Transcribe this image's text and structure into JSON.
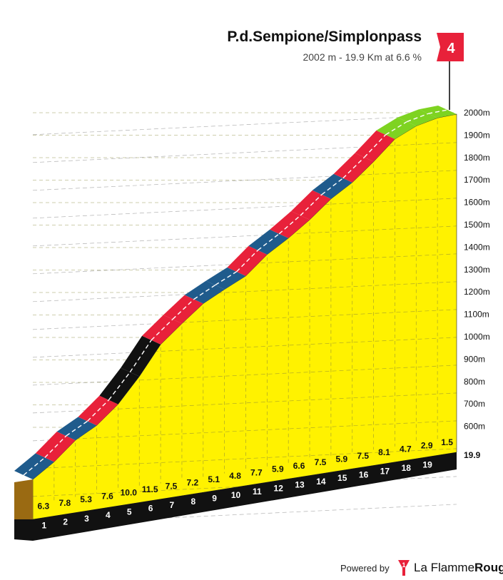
{
  "header": {
    "title": "P.d.Sempione/Simplonpass",
    "subtitle": "2002 m - 19.9 Km at 6.6 %"
  },
  "footer": {
    "powered_label": "Powered by",
    "brand_prefix": "La Flamme",
    "brand_suffix": "Rouge"
  },
  "chart_data": {
    "type": "area",
    "title": "P.d.Sempione/Simplonpass",
    "subtitle": "2002 m - 19.9 Km at 6.6 %",
    "category_flag": "4",
    "summit_altitude_m": 2002,
    "total_distance_km": 19.9,
    "average_gradient_pct": 6.6,
    "x_unit": "km",
    "y_unit": "m",
    "ylim": [
      500,
      2000
    ],
    "y_ticks": [
      "600m",
      "700m",
      "800m",
      "900m",
      "1000m",
      "1100m",
      "1200m",
      "1300m",
      "1400m",
      "1500m",
      "1600m",
      "1700m",
      "1800m",
      "1900m",
      "2000m"
    ],
    "y_tick_values": [
      600,
      700,
      800,
      900,
      1000,
      1100,
      1200,
      1300,
      1400,
      1500,
      1600,
      1700,
      1800,
      1900,
      2000
    ],
    "km_labels": [
      "1",
      "2",
      "3",
      "4",
      "5",
      "6",
      "7",
      "8",
      "9",
      "10",
      "11",
      "12",
      "13",
      "14",
      "15",
      "16",
      "17",
      "18",
      "19"
    ],
    "end_label": "19.9",
    "segment_gradients": [
      "6.3",
      "7.8",
      "5.3",
      "7.6",
      "10.0",
      "11.5",
      "7.5",
      "7.2",
      "5.1",
      "4.8",
      "7.7",
      "5.9",
      "6.6",
      "7.5",
      "5.9",
      "7.5",
      "8.1",
      "4.7",
      "2.9",
      "1.5"
    ],
    "gradient_values": [
      6.3,
      7.8,
      5.3,
      7.6,
      10.0,
      11.5,
      7.5,
      7.2,
      5.1,
      4.8,
      7.7,
      5.9,
      6.6,
      7.5,
      5.9,
      7.5,
      8.1,
      4.7,
      2.9,
      1.5
    ],
    "segment_lengths_km": [
      1,
      1,
      1,
      1,
      1,
      1,
      1,
      1,
      1,
      1,
      1,
      1,
      1,
      1,
      1,
      1,
      1,
      1,
      1,
      0.9
    ],
    "gradient_colors": {
      "low": "#7ed321",
      "medium": "#1f5b8c",
      "high": "#e8213a",
      "extreme": "#111111"
    },
    "fill_color": "#fff200",
    "base_color": "#111111",
    "side_color": "#9a6a12",
    "flag_color": "#e8213a"
  }
}
